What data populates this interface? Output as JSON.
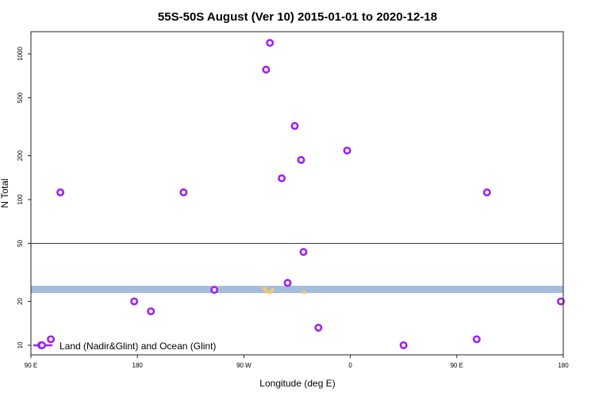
{
  "chart_data": {
    "type": "scatter",
    "title": "55S-50S August (Ver 10)   2015-01-01 to 2020-12-18",
    "xlabel": "Longitude (deg E)",
    "ylabel": "N Total",
    "y_scale": "log",
    "xlim": [
      90,
      540
    ],
    "ylim": [
      8.6,
      1420
    ],
    "x_ticks": [
      {
        "value": 90,
        "label": "90 E"
      },
      {
        "value": 180,
        "label": "180"
      },
      {
        "value": 270,
        "label": "90 W"
      },
      {
        "value": 360,
        "label": "0"
      },
      {
        "value": 450,
        "label": "90 E"
      },
      {
        "value": 540,
        "label": "180"
      }
    ],
    "y_ticks": [
      {
        "value": 10,
        "label": "10"
      },
      {
        "value": 20,
        "label": "20"
      },
      {
        "value": 50,
        "label": "50"
      },
      {
        "value": 100,
        "label": "100"
      },
      {
        "value": 200,
        "label": "200"
      },
      {
        "value": 500,
        "label": "500"
      },
      {
        "value": 1000,
        "label": "1000"
      }
    ],
    "reference_line": 50,
    "band": {
      "ymin": 22.8,
      "ymax": 25.6,
      "color": "#a6bcdb"
    },
    "series": [
      {
        "name": "Land (Nadir&Glint) and Ocean (Glint)",
        "color": "#a020f0",
        "points": [
          [
            98.7,
            10
          ],
          [
            106.8,
            11
          ],
          [
            114.9,
            112
          ],
          [
            177.3,
            20
          ],
          [
            191.4,
            17.1
          ],
          [
            219,
            112
          ],
          [
            245,
            24
          ],
          [
            292,
            1190
          ],
          [
            288.8,
            780
          ],
          [
            313,
            320
          ],
          [
            318.4,
            187
          ],
          [
            302,
            140
          ],
          [
            357.3,
            217
          ],
          [
            320.4,
            43.7
          ],
          [
            307,
            26.8
          ],
          [
            333,
            13.2
          ],
          [
            405,
            10
          ],
          [
            466.8,
            11
          ],
          [
            475.5,
            112
          ],
          [
            538,
            20
          ]
        ]
      }
    ],
    "minor_marks": {
      "color": "#ffcc55",
      "points": [
        [
          287.5,
          24.5
        ],
        [
          289,
          23.5
        ],
        [
          292,
          23
        ],
        [
          294,
          24
        ],
        [
          321,
          23
        ]
      ]
    },
    "legend_position": "bottom-left"
  }
}
